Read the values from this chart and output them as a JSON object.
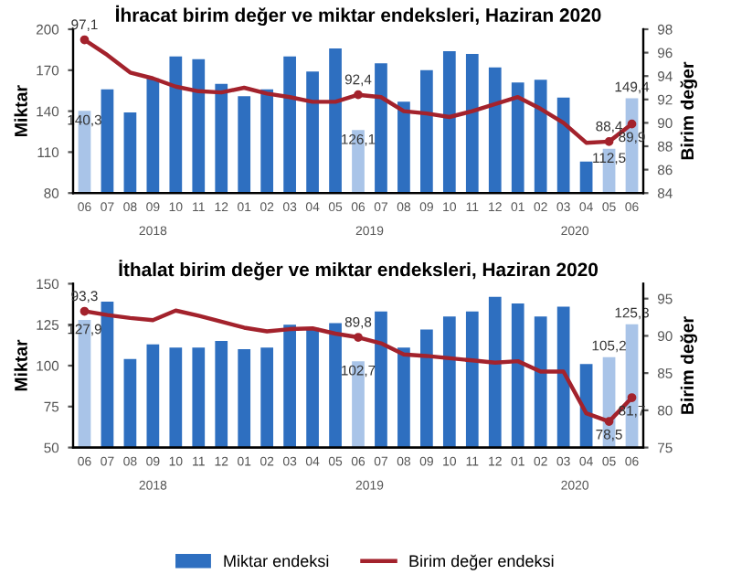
{
  "chart_data": [
    {
      "type": "bar",
      "title": "İhracat birim değer ve miktar endeksleri, Haziran 2020",
      "ylabel": "Miktar",
      "y2label": "Birim değer",
      "categories": [
        "06",
        "07",
        "08",
        "09",
        "10",
        "11",
        "12",
        "01",
        "02",
        "03",
        "04",
        "05",
        "06",
        "07",
        "08",
        "09",
        "10",
        "11",
        "12",
        "01",
        "02",
        "03",
        "04",
        "05",
        "06"
      ],
      "annotations": [
        "2018",
        "2019",
        "2020"
      ],
      "ylim": [
        80,
        200
      ],
      "yticks": [
        80,
        110,
        140,
        170,
        200
      ],
      "y2lim": [
        84,
        98
      ],
      "y2ticks": [
        84,
        86,
        88,
        90,
        92,
        94,
        96,
        98
      ],
      "series": [
        {
          "colors": [
            "#a9c4e8",
            "#2e6fc0",
            "#2e6fc0",
            "#2e6fc0",
            "#2e6fc0",
            "#2e6fc0",
            "#2e6fc0",
            "#2e6fc0",
            "#2e6fc0",
            "#2e6fc0",
            "#2e6fc0",
            "#2e6fc0",
            "#a9c4e8",
            "#2e6fc0",
            "#2e6fc0",
            "#2e6fc0",
            "#2e6fc0",
            "#2e6fc0",
            "#2e6fc0",
            "#2e6fc0",
            "#2e6fc0",
            "#2e6fc0",
            "#2e6fc0",
            "#a9c4e8",
            "#a9c4e8"
          ],
          "values": [
            140.3,
            156,
            139,
            164,
            180,
            178,
            160,
            151,
            156,
            180,
            169,
            186,
            126.1,
            175,
            147,
            170,
            184,
            182,
            172,
            161,
            163,
            150,
            103,
            112.5,
            149.4
          ],
          "value_labels": [
            "140,3",
            null,
            null,
            null,
            null,
            null,
            null,
            null,
            null,
            null,
            null,
            null,
            "126,1",
            null,
            null,
            null,
            null,
            null,
            null,
            null,
            null,
            null,
            null,
            "112,5",
            "149,4"
          ]
        },
        {
          "type": "line",
          "axis": "y2",
          "color": "#a3222c",
          "values": [
            97.1,
            95.8,
            94.3,
            93.8,
            93.1,
            92.7,
            92.6,
            93.0,
            92.5,
            92.2,
            91.8,
            91.8,
            92.4,
            92.2,
            91.0,
            90.8,
            90.5,
            91.0,
            91.6,
            92.2,
            91.2,
            90.0,
            88.3,
            88.4,
            89.9
          ],
          "value_labels": [
            "97,1",
            null,
            null,
            null,
            null,
            null,
            null,
            null,
            null,
            null,
            null,
            null,
            "92,4",
            null,
            null,
            null,
            null,
            null,
            null,
            null,
            null,
            null,
            null,
            "88,4",
            "89,9"
          ]
        }
      ]
    },
    {
      "type": "bar",
      "title": "İthalat birim değer ve miktar endeksleri, Haziran 2020",
      "ylabel": "Miktar",
      "y2label": "Birim değer",
      "categories": [
        "06",
        "07",
        "08",
        "09",
        "10",
        "11",
        "12",
        "01",
        "02",
        "03",
        "04",
        "05",
        "06",
        "07",
        "08",
        "09",
        "10",
        "11",
        "12",
        "01",
        "02",
        "03",
        "04",
        "05",
        "06"
      ],
      "annotations": [
        "2018",
        "2019",
        "2020"
      ],
      "ylim": [
        50,
        150
      ],
      "yticks": [
        50,
        75,
        100,
        125,
        150
      ],
      "y2lim": [
        75,
        97
      ],
      "y2ticks": [
        75,
        80,
        85,
        90,
        95
      ],
      "legend": "bottom",
      "series": [
        {
          "name": "Miktar endeksi",
          "color": "#2e6fc0",
          "colors": [
            "#a9c4e8",
            "#2e6fc0",
            "#2e6fc0",
            "#2e6fc0",
            "#2e6fc0",
            "#2e6fc0",
            "#2e6fc0",
            "#2e6fc0",
            "#2e6fc0",
            "#2e6fc0",
            "#2e6fc0",
            "#2e6fc0",
            "#a9c4e8",
            "#2e6fc0",
            "#2e6fc0",
            "#2e6fc0",
            "#2e6fc0",
            "#2e6fc0",
            "#2e6fc0",
            "#2e6fc0",
            "#2e6fc0",
            "#2e6fc0",
            "#2e6fc0",
            "#a9c4e8",
            "#a9c4e8"
          ],
          "values": [
            127.9,
            139,
            104,
            113,
            111,
            111,
            115,
            110,
            111,
            125,
            123,
            126,
            102.7,
            133,
            111,
            122,
            130,
            133,
            142,
            138,
            130,
            136,
            101,
            105.2,
            125.3
          ],
          "value_labels": [
            "127,9",
            null,
            null,
            null,
            null,
            null,
            null,
            null,
            null,
            null,
            null,
            null,
            "102,7",
            null,
            null,
            null,
            null,
            null,
            null,
            null,
            null,
            null,
            null,
            "105,2",
            "125,3"
          ]
        },
        {
          "type": "line",
          "name": "Birim değer endeksi",
          "axis": "y2",
          "color": "#a3222c",
          "values": [
            93.3,
            92.8,
            92.4,
            92.1,
            93.4,
            92.7,
            91.9,
            91.1,
            90.6,
            90.9,
            91.0,
            90.3,
            89.8,
            89.0,
            87.5,
            87.3,
            87.0,
            86.7,
            86.4,
            86.6,
            85.2,
            85.2,
            79.6,
            78.5,
            81.7
          ],
          "value_labels": [
            "93,3",
            null,
            null,
            null,
            null,
            null,
            null,
            null,
            null,
            null,
            null,
            null,
            "89,8",
            null,
            null,
            null,
            null,
            null,
            null,
            null,
            null,
            null,
            null,
            "78,5",
            "81,7"
          ]
        }
      ]
    }
  ]
}
